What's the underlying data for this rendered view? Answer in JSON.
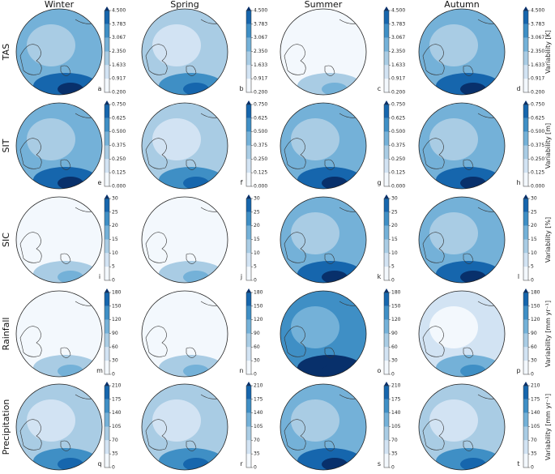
{
  "columns": [
    "Winter",
    "Spring",
    "Summer",
    "Autumn"
  ],
  "rows": [
    {
      "label": "TAS",
      "colorbar_label": "Variability [K]",
      "panels": [
        "a",
        "b",
        "c",
        "d"
      ],
      "ticks": [
        {
          "value": 0.2,
          "label": "0.200"
        },
        {
          "value": 0.917,
          "label": "0.917"
        },
        {
          "value": 1.633,
          "label": "1.633"
        },
        {
          "value": 2.35,
          "label": "2.350"
        },
        {
          "value": 3.067,
          "label": "3.067"
        },
        {
          "value": 3.783,
          "label": "3.783"
        },
        {
          "value": 4.5,
          "label": "4.500"
        }
      ]
    },
    {
      "label": "SIT",
      "colorbar_label": "Variability [m]",
      "panels": [
        "e",
        "f",
        "g",
        "h"
      ],
      "ticks": [
        {
          "value": 0,
          "label": "0.000"
        },
        {
          "value": 0.125,
          "label": "0.125"
        },
        {
          "value": 0.25,
          "label": "0.250"
        },
        {
          "value": 0.375,
          "label": "0.375"
        },
        {
          "value": 0.5,
          "label": "0.500"
        },
        {
          "value": 0.625,
          "label": "0.625"
        },
        {
          "value": 0.75,
          "label": "0.750"
        }
      ]
    },
    {
      "label": "SIC",
      "colorbar_label": "Variability [%]",
      "panels": [
        "i",
        "j",
        "k",
        "l"
      ],
      "ticks": [
        0,
        5,
        10,
        15,
        20,
        25,
        30
      ]
    },
    {
      "label": "Rainfall",
      "colorbar_label": "Variability [mm yr⁻¹]",
      "panels": [
        "m",
        "n",
        "o",
        "p"
      ],
      "ticks": [
        0,
        30,
        60,
        90,
        120,
        150,
        180
      ]
    },
    {
      "label": "Precipitation",
      "colorbar_label": "Variability [mm yr⁻¹]",
      "panels": [
        "q",
        "r",
        "s",
        "t"
      ],
      "ticks": [
        0,
        35,
        70,
        105,
        140,
        175,
        210
      ]
    }
  ]
}
